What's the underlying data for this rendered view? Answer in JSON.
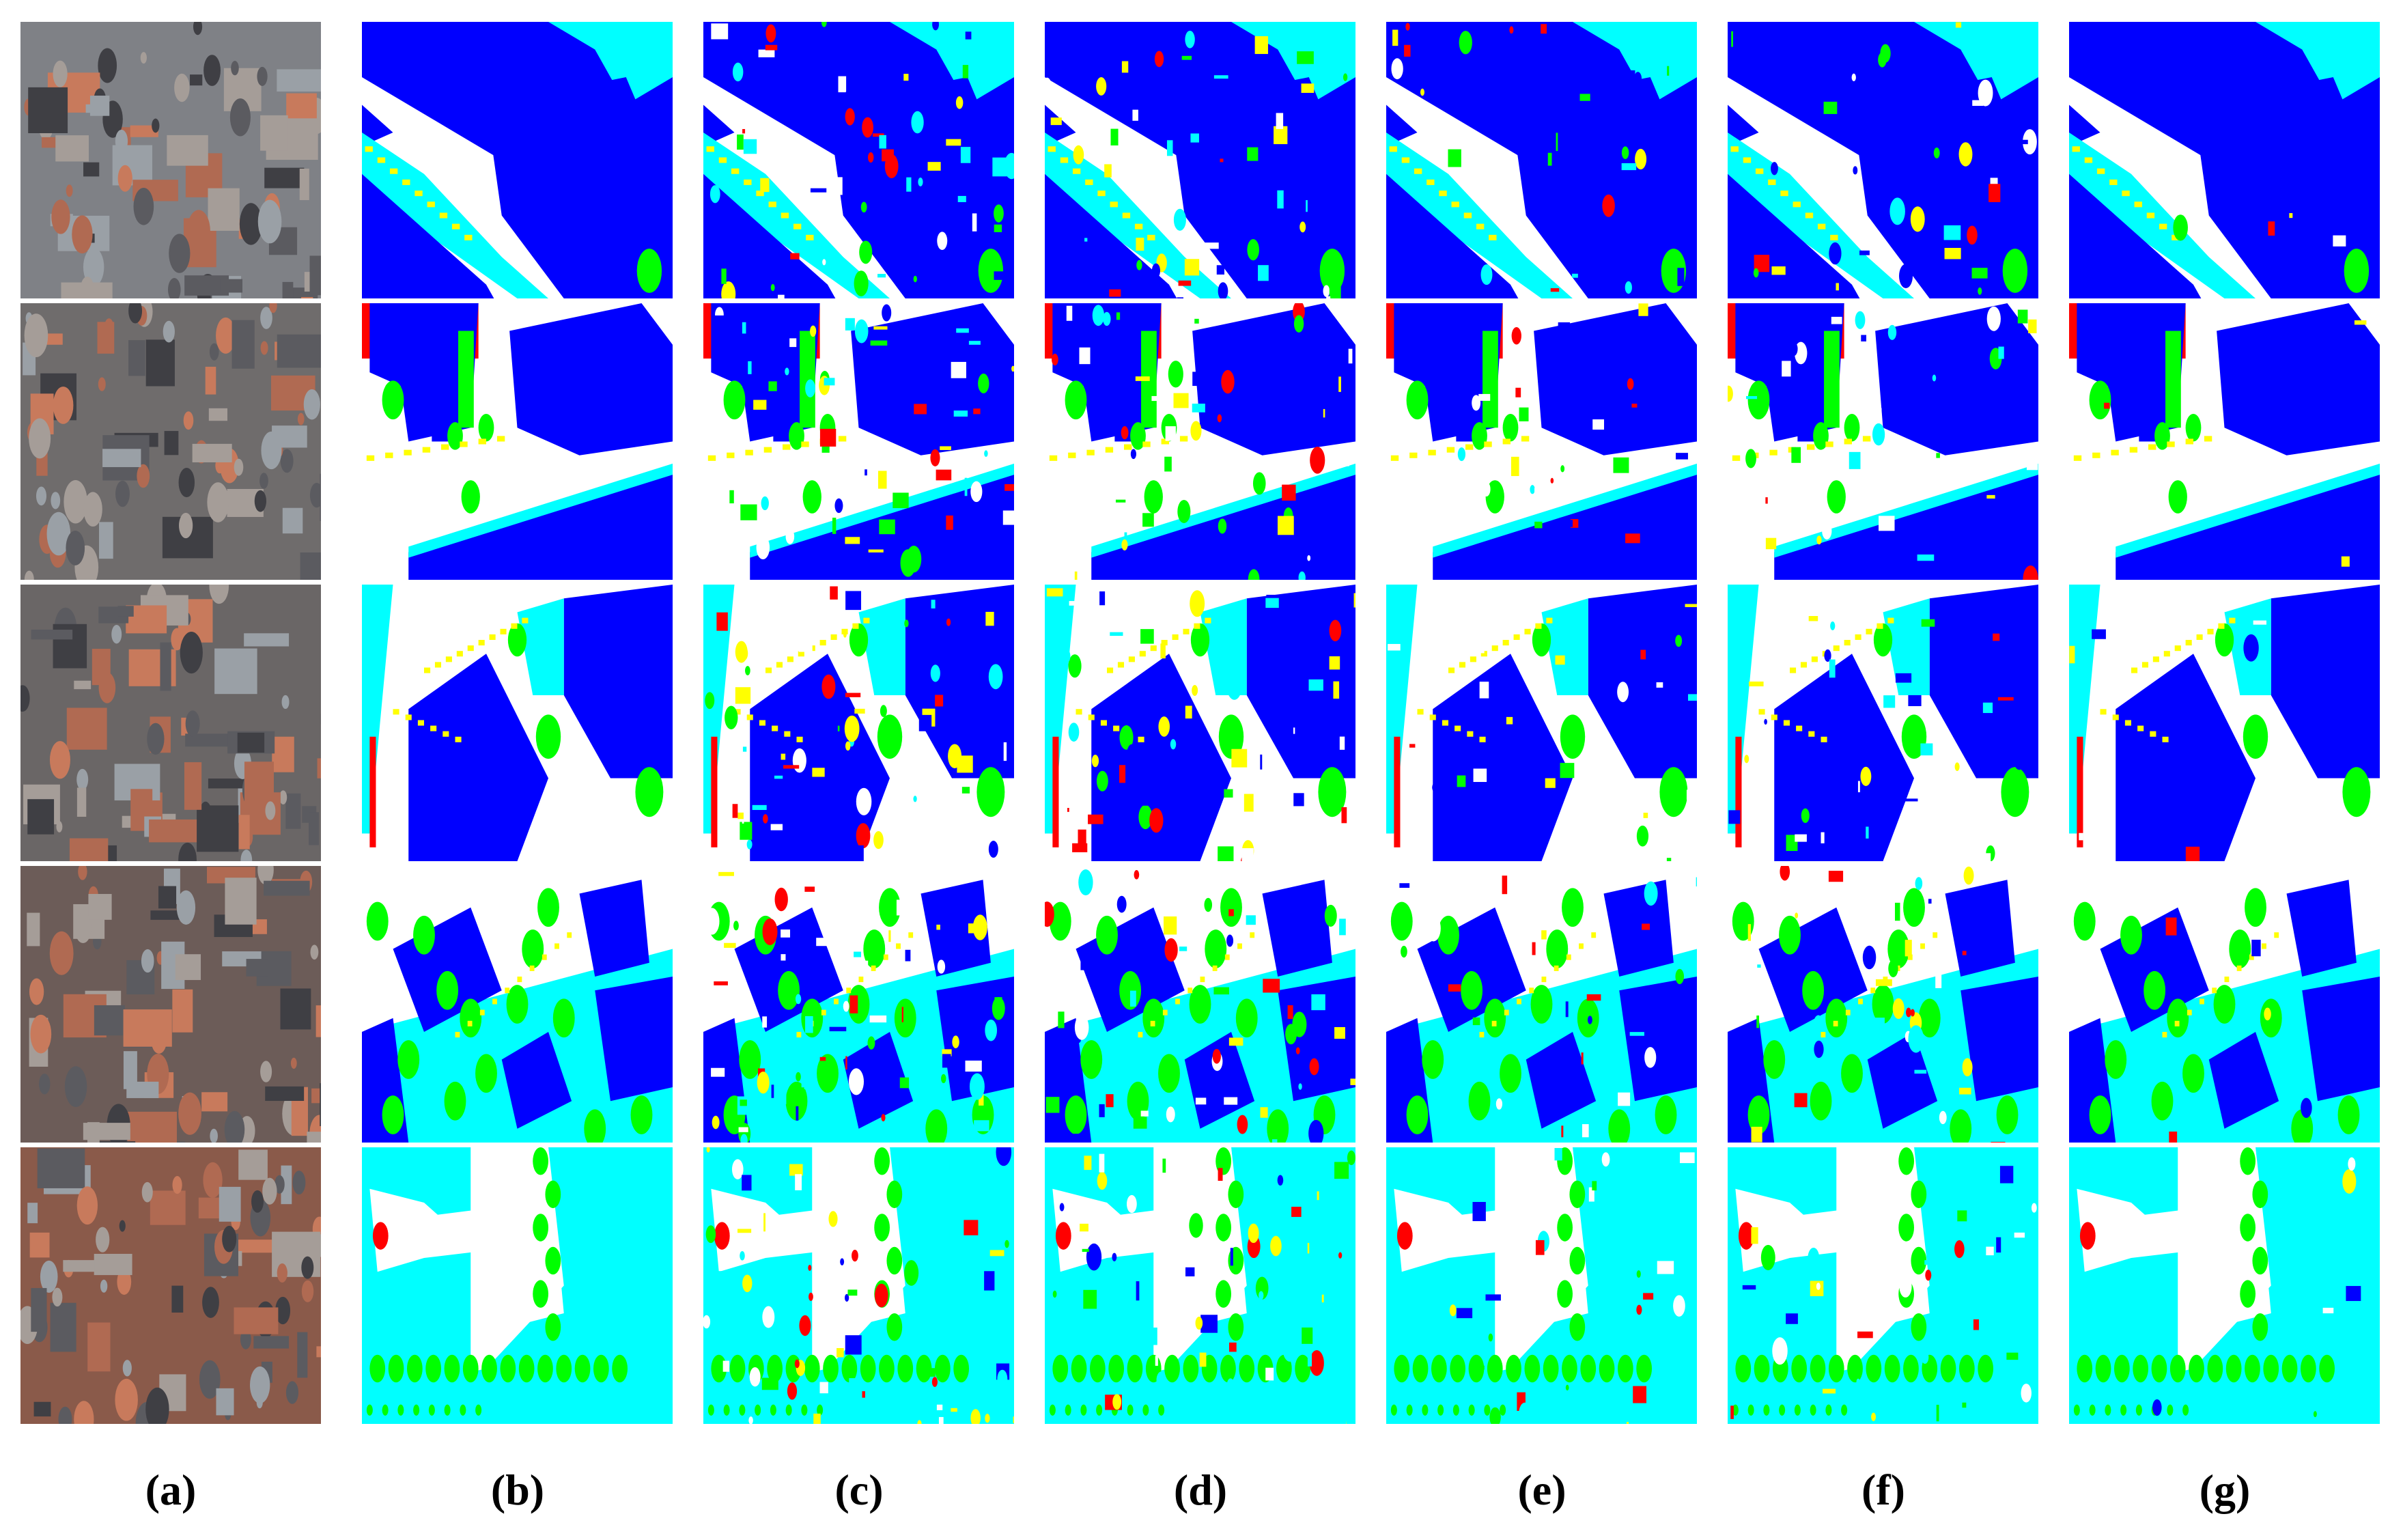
{
  "figure": {
    "column_labels": [
      "(a)",
      "(b)",
      "(c)",
      "(d)",
      "(e)",
      "(f)",
      "(g)"
    ],
    "rows": 5,
    "columns": 7,
    "column_content": [
      "aerial image",
      "ground truth",
      "method c",
      "method d",
      "method e",
      "method f",
      "method g"
    ]
  },
  "legend_colors": {
    "impervious_surface": "#ffffff",
    "building": "#0000ff",
    "low_vegetation": "#00ffff",
    "tree": "#00ff00",
    "car": "#ffff00",
    "clutter": "#ff0000"
  }
}
